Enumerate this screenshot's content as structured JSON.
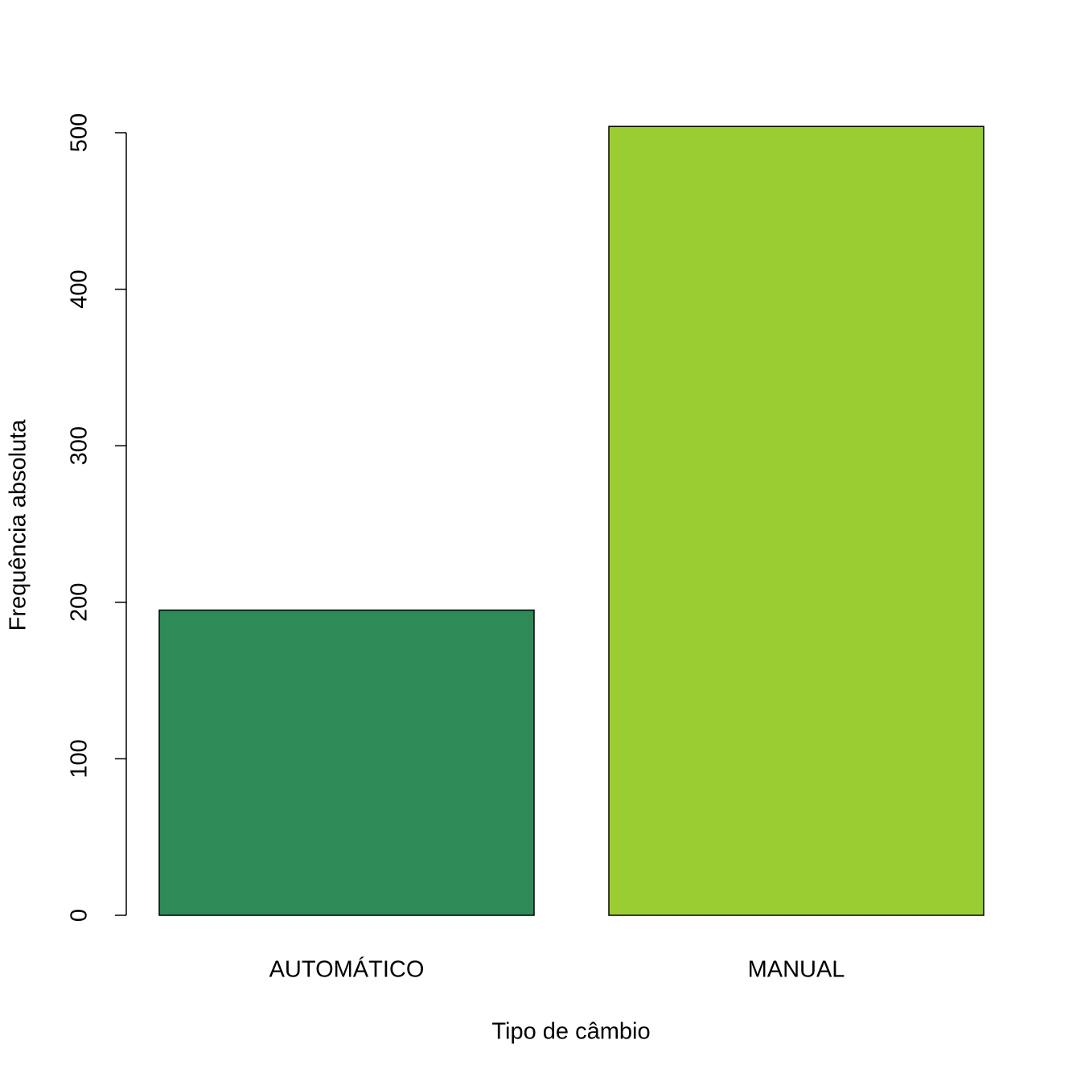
{
  "chart_data": {
    "type": "bar",
    "x_label": "Tipo de câmbio",
    "y_label": "Frequência absoluta",
    "categories": [
      "AUTOMÁTICO",
      "MANUAL"
    ],
    "values": [
      195,
      504
    ],
    "colors": [
      "#2E8B57",
      "#9ACD32"
    ],
    "ylim": [
      0,
      500
    ],
    "yticks": [
      0,
      100,
      200,
      300,
      400,
      500
    ],
    "grid": false
  }
}
